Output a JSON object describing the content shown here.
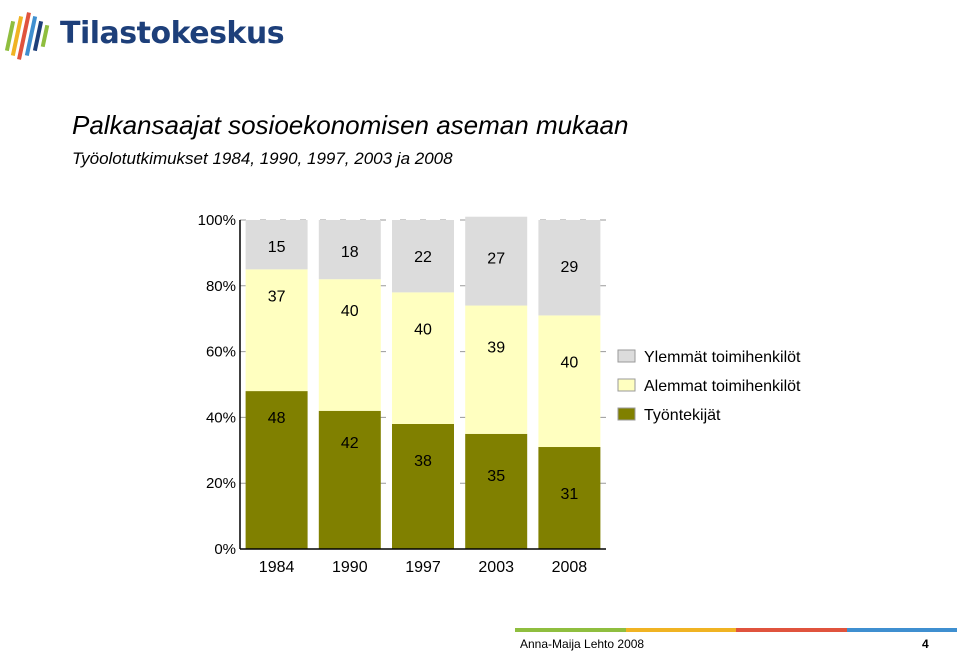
{
  "header": {
    "logo_text": "Tilastokeskus",
    "logo_colors": [
      "#8fbe3f",
      "#f0b323",
      "#e0533d",
      "#3f8fd0",
      "#1d3f7a"
    ]
  },
  "title": "Palkansaajat sosioekonomisen aseman mukaan",
  "subtitle": "Työolotutkimukset 1984, 1990, 1997, 2003 ja 2008",
  "chart_data": {
    "type": "bar",
    "stacked": true,
    "categories": [
      "1984",
      "1990",
      "1997",
      "2003",
      "2008"
    ],
    "series": [
      {
        "name": "Työntekijät",
        "values": [
          48,
          42,
          38,
          35,
          31
        ],
        "color": "#808000"
      },
      {
        "name": "Alemmat toimihenkilöt",
        "values": [
          37,
          40,
          40,
          39,
          40
        ],
        "color": "#ffffc0"
      },
      {
        "name": "Ylemmät toimihenkilöt",
        "values": [
          15,
          18,
          22,
          27,
          29
        ],
        "color": "#dcdcdc"
      }
    ],
    "legend_order": [
      2,
      1,
      0
    ],
    "ylim": [
      0,
      100
    ],
    "yticks": [
      0,
      20,
      40,
      60,
      80,
      100
    ],
    "ytick_labels": [
      "0%",
      "20%",
      "40%",
      "60%",
      "80%",
      "100%"
    ],
    "grid": true,
    "legend_position": "right",
    "data_labels": true
  },
  "footer": {
    "author": "Anna-Maija Lehto 2008",
    "page": "4",
    "line_colors": [
      "#8fbe3f",
      "#f0b323",
      "#e0533d",
      "#3f8fd0"
    ]
  }
}
